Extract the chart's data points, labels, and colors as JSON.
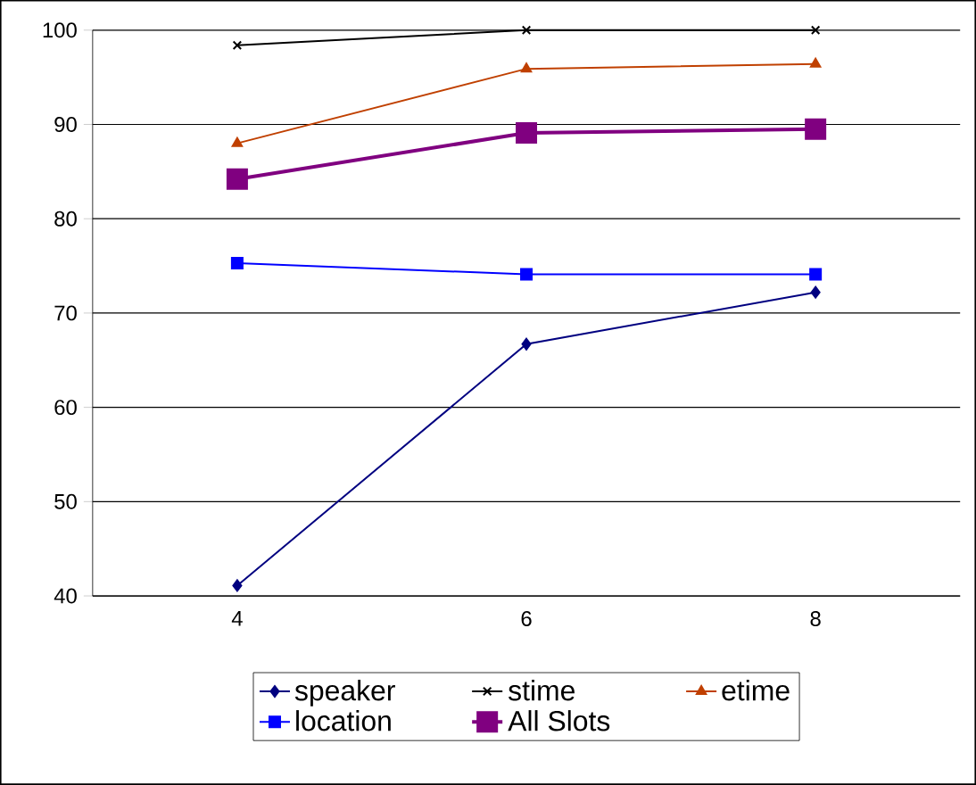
{
  "chart_data": {
    "type": "line",
    "categories": [
      "4",
      "6",
      "8"
    ],
    "series": [
      {
        "name": "speaker",
        "color": "#000080",
        "marker": "diamond",
        "values": [
          41.1,
          66.7,
          72.2
        ]
      },
      {
        "name": "stime",
        "color": "#000000",
        "marker": "cross",
        "values": [
          98.4,
          100,
          100
        ]
      },
      {
        "name": "etime",
        "color": "#c04000",
        "marker": "triangle",
        "values": [
          88.0,
          95.9,
          96.4
        ]
      },
      {
        "name": "location",
        "color": "#0000ff",
        "marker": "square",
        "values": [
          75.3,
          74.1,
          74.1
        ]
      },
      {
        "name": "All Slots",
        "color": "#800080",
        "marker": "square",
        "values": [
          84.2,
          89.1,
          89.5
        ]
      }
    ],
    "ylim": [
      40,
      100
    ],
    "yticks": [
      40,
      50,
      60,
      70,
      80,
      90,
      100
    ],
    "grid": "y",
    "legend": "bottom",
    "line_style": "solid"
  }
}
